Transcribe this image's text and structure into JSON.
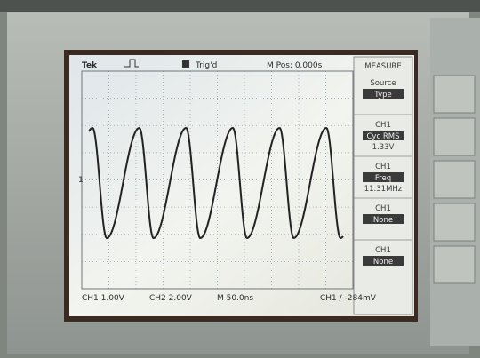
{
  "header": {
    "brand": "Tek",
    "trigger_status": "Trig'd",
    "position": "M Pos: 0.000s"
  },
  "menu": {
    "title": "MEASURE",
    "items": [
      {
        "label": "Source",
        "value": "Type"
      },
      {
        "label": "CH1",
        "value": "Cyc RMS",
        "reading": "1.33V"
      },
      {
        "label": "CH1",
        "value": "Freq",
        "reading": "11.31MHz"
      },
      {
        "label": "CH1",
        "value": "None"
      },
      {
        "label": "CH1",
        "value": "None"
      }
    ]
  },
  "marker": "1",
  "footer": {
    "ch1": "CH1  1.00V",
    "ch2": "CH2  2.00V",
    "timebase": "M 50.0ns",
    "trigger": "CH1  ∕  -284mV"
  }
}
